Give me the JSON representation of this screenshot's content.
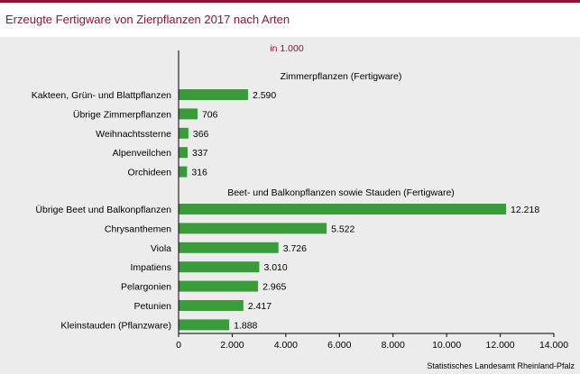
{
  "title": "Erzeugte Fertigware von Zierpflanzen 2017 nach Arten",
  "source": "Statistisches Landesamt Rheinland-Pfalz",
  "colors": {
    "accent": "#8a1538",
    "bar": "#3a9b3a",
    "background": "#ececec"
  },
  "chart_data": {
    "type": "bar",
    "orientation": "horizontal",
    "unit": "in 1.000",
    "groups": [
      {
        "name": "Zimmerpflanzen (Fertigware)",
        "categories": [
          "Kakteen, Grün- und Blattpflanzen",
          "Übrige Zimmerpflanzen",
          "Weihnachtssterne",
          "Alpenveilchen",
          "Orchideen"
        ],
        "values": [
          2590,
          706,
          366,
          337,
          316
        ],
        "labels": [
          "2.590",
          "706",
          "366",
          "337",
          "316"
        ]
      },
      {
        "name": "Beet- und Balkonpflanzen sowie Stauden (Fertigware)",
        "categories": [
          "Übrige Beet und Balkonpflanzen",
          "Chrysanthemen",
          "Viola",
          "Impatiens",
          "Pelargonien",
          "Petunien",
          "Kleinstauden (Pflanzware)"
        ],
        "values": [
          12218,
          5522,
          3726,
          3010,
          2965,
          2417,
          1888
        ],
        "labels": [
          "12.218",
          "5.522",
          "3.726",
          "3.010",
          "2.965",
          "2.417",
          "1.888"
        ]
      }
    ],
    "xlim": [
      0,
      14000
    ],
    "xticks": [
      0,
      2000,
      4000,
      6000,
      8000,
      10000,
      12000,
      14000
    ],
    "xtick_labels": [
      "0",
      "2.000",
      "4.000",
      "6.000",
      "8.000",
      "10.000",
      "12.000",
      "14.000"
    ],
    "grid": false,
    "legend": "none"
  }
}
